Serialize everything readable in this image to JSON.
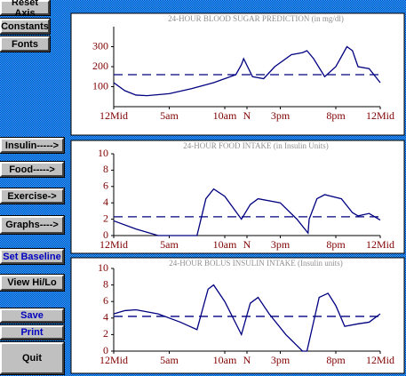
{
  "buttons": [
    "Reset Axis",
    "Constants",
    "Fonts",
    "Insulin----->",
    "Food----->",
    "Exercise->",
    "Graphs---->",
    "Set Baseline",
    "View Hi/Lo",
    "Save",
    "Print",
    "Quit"
  ],
  "chart_data": [
    {
      "type": "line",
      "title": "24-HOUR BLOOD SUGAR PREDICTION (in mg/dl)",
      "x": [
        0,
        1,
        2,
        3,
        5,
        7,
        9,
        10,
        11,
        11.5,
        11.7,
        12.5,
        13.5,
        14.5,
        16,
        17,
        17.4,
        18,
        19,
        20,
        21,
        21.5,
        22,
        23,
        24
      ],
      "series": [
        {
          "color": "#000080",
          "values": [
            120,
            80,
            58,
            55,
            65,
            90,
            120,
            140,
            160,
            210,
            240,
            150,
            140,
            200,
            260,
            270,
            280,
            240,
            150,
            200,
            300,
            280,
            200,
            190,
            120
          ]
        }
      ],
      "baseline": 160,
      "xlim": [
        0,
        24
      ],
      "xticks": [
        {
          "value": 0,
          "label": "12Mid"
        },
        {
          "value": 5,
          "label": "5am"
        },
        {
          "value": 10,
          "label": "10am"
        },
        {
          "value": 12,
          "label": "N"
        },
        {
          "value": 15,
          "label": "3pm"
        },
        {
          "value": 20,
          "label": "8pm"
        },
        {
          "value": 24,
          "label": "12Mid"
        }
      ],
      "ylim": [
        0,
        400
      ],
      "yticks": [
        100,
        200,
        300
      ]
    },
    {
      "type": "line",
      "title": "24-HOUR FOOD INTAKE (in Insulin Units)",
      "x": [
        0,
        2,
        4,
        7.5,
        8.3,
        9,
        10,
        11.5,
        12.3,
        13,
        15,
        16.5,
        17.5,
        17.6,
        18.3,
        19,
        20.5,
        21.5,
        22,
        23,
        24
      ],
      "series": [
        {
          "color": "#000080",
          "values": [
            1.8,
            0.8,
            0,
            0,
            4.5,
            5.7,
            4.8,
            2,
            3.8,
            4.5,
            4,
            2,
            0.3,
            2,
            4.5,
            5,
            4.5,
            2.8,
            2.4,
            2.7,
            1.9
          ]
        }
      ],
      "baseline": 2.3,
      "xlim": [
        0,
        24
      ],
      "xticks": [
        {
          "value": 0,
          "label": "12Mid"
        },
        {
          "value": 5,
          "label": "5am"
        },
        {
          "value": 10,
          "label": "10am"
        },
        {
          "value": 12,
          "label": "N"
        },
        {
          "value": 15,
          "label": "3pm"
        },
        {
          "value": 20,
          "label": "8pm"
        },
        {
          "value": 24,
          "label": "12Mid"
        }
      ],
      "ylim": [
        0,
        10
      ],
      "yticks": [
        0,
        2,
        4,
        6,
        8,
        10
      ]
    },
    {
      "type": "line",
      "title": "24-HOUR BOLUS INSULIN INTAKE (Insulin units)",
      "x": [
        0,
        1,
        2,
        4,
        6,
        7.5,
        8.5,
        9,
        10,
        11.5,
        12.3,
        13,
        14,
        15.5,
        17,
        17.4,
        18.5,
        19.3,
        20,
        20.8,
        22,
        23,
        24
      ],
      "series": [
        {
          "color": "#000080",
          "values": [
            4.5,
            4.9,
            5,
            4.5,
            3.5,
            2.6,
            7.5,
            8,
            6,
            2,
            5.8,
            6.5,
            4.5,
            2,
            0,
            0,
            6.5,
            7,
            5.5,
            3,
            3.3,
            3.5,
            4.5
          ]
        }
      ],
      "baseline": 4.2,
      "xlim": [
        0,
        24
      ],
      "xticks": [
        {
          "value": 0,
          "label": "12Mid"
        },
        {
          "value": 5,
          "label": "5am"
        },
        {
          "value": 10,
          "label": "10am"
        },
        {
          "value": 12,
          "label": "N"
        },
        {
          "value": 15,
          "label": "3pm"
        },
        {
          "value": 20,
          "label": "8pm"
        },
        {
          "value": 24,
          "label": "12Mid"
        }
      ],
      "ylim": [
        0,
        10
      ],
      "yticks": [
        0,
        2,
        4,
        6,
        8,
        10
      ]
    }
  ]
}
